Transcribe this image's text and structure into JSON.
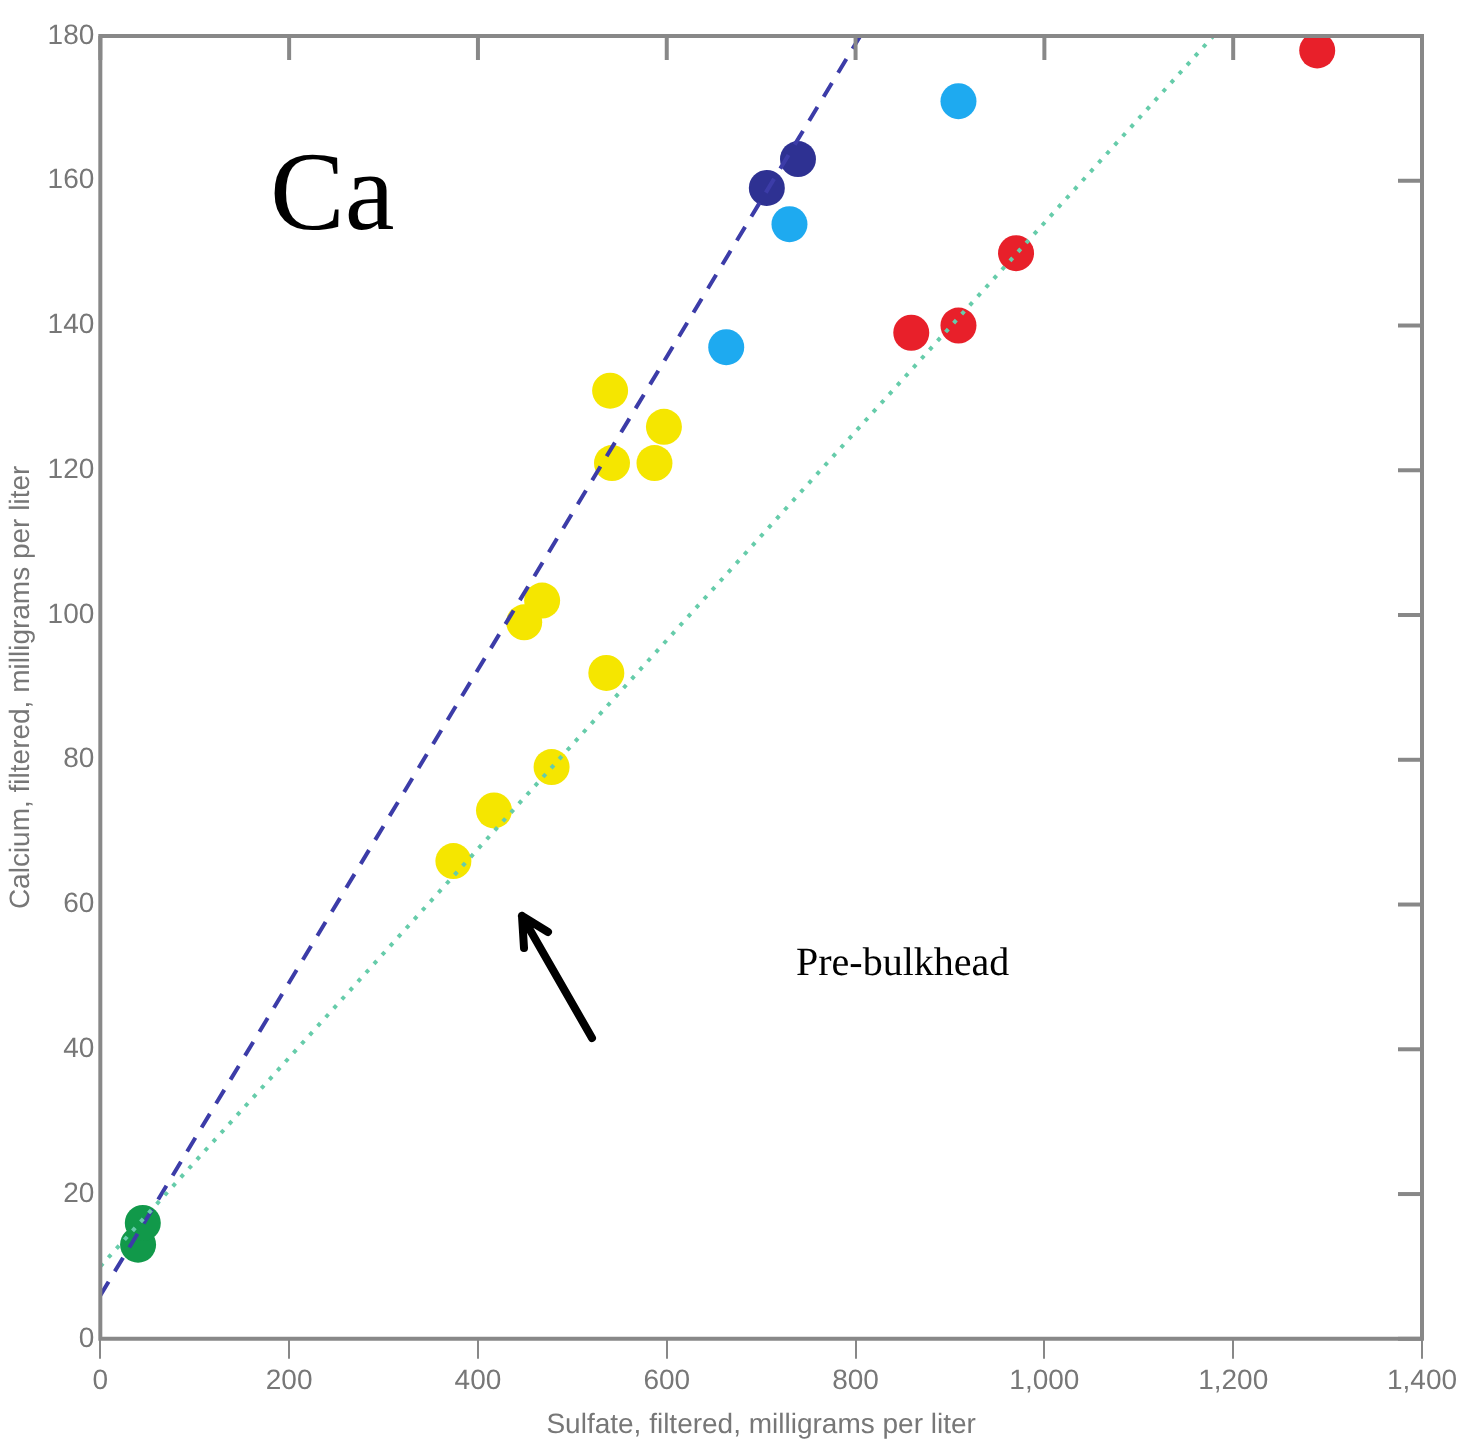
{
  "chart_data": {
    "type": "scatter",
    "xlabel": "Sulfate, filtered, milligrams per liter",
    "ylabel": "Calcium, filtered, milligrams per liter",
    "xlim": [
      0,
      1400
    ],
    "xticks": [
      0,
      200,
      400,
      600,
      800,
      {
        "value": 1000,
        "label": "1,000"
      },
      {
        "value": 1200,
        "label": "1,200"
      },
      {
        "value": 1400,
        "label": "1,400"
      }
    ],
    "ylim": [
      0,
      180
    ],
    "yticks": [
      0,
      20,
      40,
      60,
      80,
      100,
      120,
      140,
      160,
      180
    ],
    "grid": false,
    "legend": false,
    "marker": "circle",
    "annotations": [
      "Ca",
      "Pre-bulkhead"
    ],
    "series": [
      {
        "color": "#11994a",
        "x": [
          40,
          45
        ],
        "values": [
          13,
          16
        ]
      },
      {
        "color": "#f5e600",
        "x": [
          540,
          542,
          597,
          587,
          468,
          449,
          536,
          478,
          417,
          374
        ],
        "values": [
          131,
          121,
          126,
          121,
          102,
          99,
          92,
          79,
          73,
          66
        ]
      },
      {
        "color": "#2e3192",
        "x": [
          706,
          739
        ],
        "values": [
          159,
          163
        ]
      },
      {
        "color": "#1eaaf0",
        "x": [
          909,
          730,
          663
        ],
        "values": [
          171,
          154,
          137
        ]
      },
      {
        "color": "#e8202a",
        "x": [
          1289,
          970,
          909,
          859
        ],
        "values": [
          178,
          150,
          140,
          139
        ]
      },
      {
        "type": "line",
        "color": "#3c3ca8",
        "line_style": "dashed",
        "marker": "none",
        "x": [
          0,
          805
        ],
        "values": [
          6,
          180
        ]
      },
      {
        "type": "line",
        "color": "#66ccaa",
        "line_style": "dotted",
        "marker": "none",
        "x": [
          0,
          1179
        ],
        "values": [
          10,
          180
        ]
      }
    ]
  }
}
